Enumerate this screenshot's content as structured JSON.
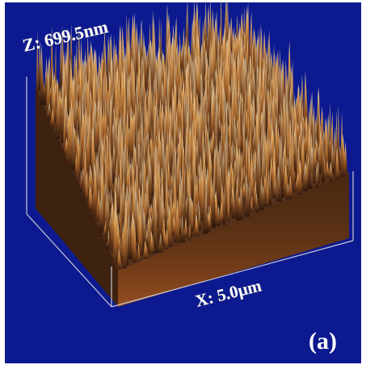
{
  "figure": {
    "z_axis_label": "Z: 699.5nm",
    "x_axis_label": "X: 5.0µm",
    "panel_label": "(a)"
  },
  "colors": {
    "background": "#0d1a8f",
    "border": "#ffffff",
    "surface_dark": "#3a1c0c",
    "surface_mid": "#c8843c",
    "surface_light": "#f2e6c8",
    "bounding_box": "#c9c9d6"
  },
  "measurements": {
    "z_range_nm": 699.5,
    "x_scan_um": 5.0
  }
}
